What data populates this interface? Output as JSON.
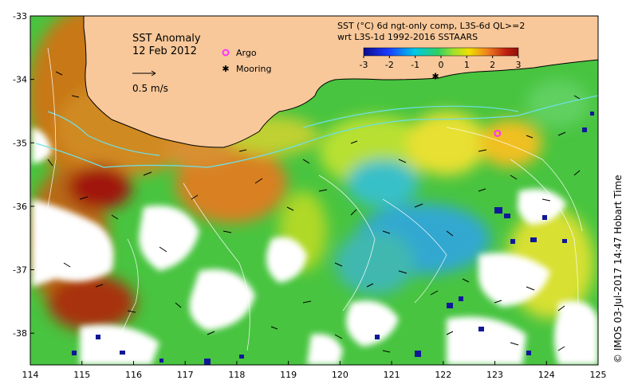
{
  "map": {
    "title": "SST Anomaly",
    "date": "12 Feb 2012",
    "scale_label": "0.5 m/s",
    "legend": {
      "argo_label": "Argo",
      "mooring_label": "Mooring",
      "argo_color": "#ff33ff",
      "mooring_color": "#000000"
    },
    "colorbar": {
      "title_line1": "SST (°C) 6d ngt-only comp, L3S-6d QL>=2",
      "title_line2": "wrt L3S-1d 1992-2016 SSTAARS",
      "tick_labels": [
        "-3",
        "-2",
        "-1",
        "0",
        "1",
        "2",
        "3"
      ],
      "range": [
        -3,
        3
      ],
      "colors": [
        "#0a0a8c",
        "#1a3cff",
        "#00c8e6",
        "#40e0a0",
        "#b0e830",
        "#f0e000",
        "#f08020",
        "#c02010",
        "#901008"
      ]
    },
    "credit": "© IMOS 03-Jul-2017 14:47 Hobart Time",
    "x_axis": {
      "tick_labels": [
        "114",
        "115",
        "116",
        "117",
        "118",
        "119",
        "120",
        "121",
        "122",
        "123",
        "124",
        "125"
      ],
      "range": [
        114,
        125
      ]
    },
    "y_axis": {
      "tick_labels": [
        "-33",
        "-34",
        "-35",
        "-36",
        "-37",
        "-38"
      ],
      "range": [
        -38.5,
        -33
      ]
    },
    "colors": {
      "land": "#f8c89a",
      "no_data": "#ffffff",
      "warm_anomaly": "#c87818",
      "hot_anomaly": "#a01808",
      "neutral": "#40c040",
      "cool_anomaly": "#40c8c8"
    },
    "markers": {
      "argo": {
        "lon": 123.05,
        "lat": -34.85
      },
      "mooring": {
        "lon": 121.85,
        "lat": -33.95
      }
    }
  }
}
